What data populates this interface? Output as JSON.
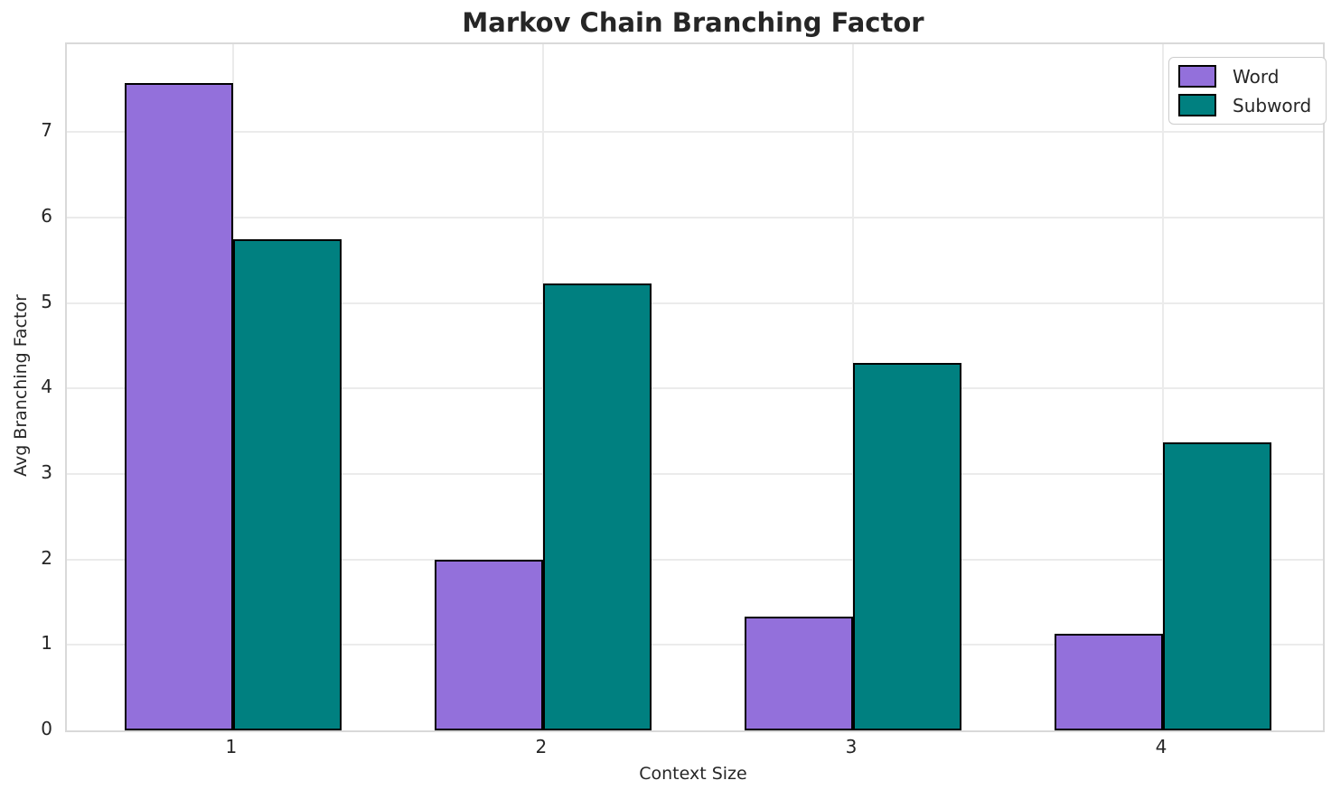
{
  "chart_data": {
    "type": "bar",
    "title": "Markov Chain Branching Factor",
    "xlabel": "Context Size",
    "ylabel": "Avg Branching Factor",
    "categories": [
      "1",
      "2",
      "3",
      "4"
    ],
    "series": [
      {
        "name": "Word",
        "color": "#9370DB",
        "values": [
          7.58,
          2.0,
          1.33,
          1.13
        ]
      },
      {
        "name": "Subword",
        "color": "#008080",
        "values": [
          5.75,
          5.23,
          4.3,
          3.37
        ]
      }
    ],
    "bar_edge_color": "#000000",
    "yticks": [
      0,
      1,
      2,
      3,
      4,
      5,
      6,
      7
    ],
    "ylim": [
      0,
      8.03
    ],
    "xlim": [
      0.464,
      4.516
    ],
    "bar_width": 0.35,
    "grid": true,
    "grid_color": "#ebebeb",
    "spine_color": "#d9d9d9",
    "text_color": "#262626",
    "background_color": "#ffffff",
    "legend": {
      "position": "upper right",
      "entries": [
        "Word",
        "Subword"
      ]
    }
  }
}
